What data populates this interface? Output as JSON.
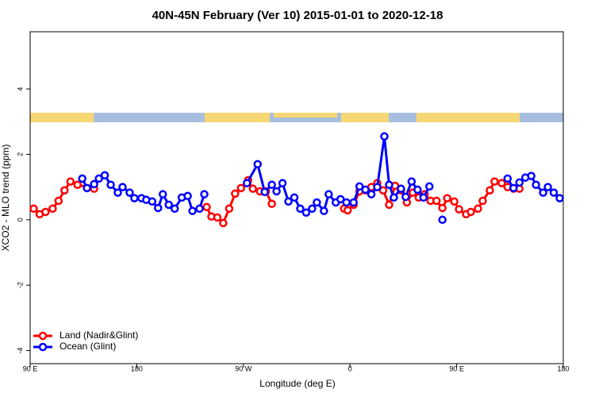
{
  "chart_data": {
    "type": "line",
    "title": "40N-45N February (Ver 10)   2015-01-01 to 2020-12-18",
    "x_label": "Longitude (deg E)",
    "y_label": "XCO2 - MLO trend (ppm)",
    "xlim": [
      90,
      540
    ],
    "xticks": [
      {
        "value": 90,
        "label": "90 E"
      },
      180,
      {
        "value": 270,
        "label": "90 W"
      },
      {
        "value": 360,
        "label": "0"
      },
      {
        "value": 450,
        "label": "90 E"
      },
      {
        "value": 540,
        "label": "180"
      }
    ],
    "ylim": [
      -4.4,
      5.75
    ],
    "yticks": [
      -4,
      -2,
      0,
      2,
      4
    ],
    "legend": "bottom-left",
    "series": [
      {
        "name": "Land (Nadir&Glint)",
        "color": "#ff0000",
        "x": [
          93,
          98,
          103,
          109,
          114,
          119,
          124,
          130,
          144,
          null,
          239,
          243,
          248,
          253,
          258,
          263,
          268,
          274,
          278,
          284,
          289,
          294,
          null,
          355,
          358,
          363,
          368,
          373,
          378,
          383,
          388,
          393,
          398,
          403,
          408,
          413,
          418,
          423,
          428,
          433,
          438,
          442,
          448,
          452,
          458,
          462,
          468,
          472,
          478,
          482,
          488,
          493,
          498,
          503
        ],
        "values": [
          0.34,
          0.17,
          0.24,
          0.34,
          0.58,
          0.9,
          1.17,
          1.07,
          0.95,
          null,
          0.39,
          0.1,
          0.07,
          -0.1,
          0.34,
          0.8,
          0.97,
          1.21,
          0.95,
          0.87,
          0.87,
          0.49,
          null,
          0.34,
          0.29,
          0.46,
          0.87,
          0.9,
          1.0,
          1.12,
          0.9,
          0.46,
          1.04,
          0.9,
          0.53,
          0.83,
          0.68,
          0.78,
          0.58,
          0.58,
          0.36,
          0.66,
          0.56,
          0.32,
          0.17,
          0.24,
          0.34,
          0.58,
          0.9,
          1.17,
          1.12,
          1.0,
          0.95,
          0.95
        ]
      },
      {
        "name": "Ocean (Glint)",
        "color": "#0000ff",
        "x": [
          134,
          138,
          144,
          148,
          153,
          158,
          164,
          168,
          174,
          178,
          184,
          188,
          193,
          198,
          202,
          207,
          212,
          218,
          223,
          227,
          233,
          237,
          null,
          273,
          282,
          288,
          294,
          298,
          303,
          308,
          313,
          318,
          323,
          328,
          332,
          338,
          342,
          348,
          352,
          357,
          363,
          368,
          373,
          378,
          383,
          389,
          393,
          397,
          403,
          407,
          412,
          417,
          422,
          427,
          null,
          438,
          null,
          493,
          498,
          503,
          508,
          513,
          517,
          523,
          527,
          532,
          537
        ],
        "values": [
          1.26,
          0.97,
          1.09,
          1.26,
          1.36,
          1.07,
          0.83,
          1.0,
          0.83,
          0.66,
          0.66,
          0.61,
          0.56,
          0.36,
          0.78,
          0.46,
          0.34,
          0.68,
          0.73,
          0.27,
          0.34,
          0.78,
          null,
          1.12,
          1.7,
          0.85,
          1.07,
          0.87,
          1.12,
          0.56,
          0.68,
          0.34,
          0.22,
          0.34,
          0.53,
          0.27,
          0.78,
          0.53,
          0.63,
          0.53,
          0.53,
          1.02,
          0.92,
          0.78,
          1.0,
          2.55,
          1.07,
          0.68,
          0.95,
          0.7,
          1.17,
          0.92,
          0.68,
          1.02,
          null,
          0,
          null,
          1.26,
          0.97,
          1.14,
          1.29,
          1.34,
          1.07,
          0.83,
          1.0,
          0.83,
          0.66
        ]
      }
    ]
  }
}
